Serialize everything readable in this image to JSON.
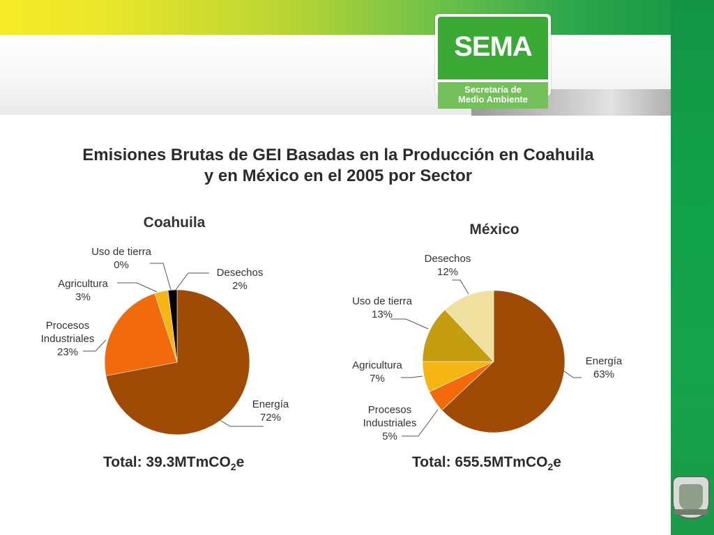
{
  "logo": {
    "name": "SEMA",
    "line1": "Secretaría de",
    "line2": "Medio Ambiente"
  },
  "title": {
    "line1": "Emisiones Brutas de GEI Basadas en la Producción en Coahuila",
    "line2": "y en México en el 2005 por Sector"
  },
  "totals": {
    "coahuila": {
      "prefix": "Total: 39.3MTmCO",
      "sub": "2",
      "suffix": "e"
    },
    "mexico": {
      "prefix": "Total: 655.5MTmCO",
      "sub": "2",
      "suffix": "e"
    }
  },
  "chart_data": [
    {
      "type": "pie",
      "title": "Coahuila",
      "colors": [
        "#a04b05",
        "#f26a0b",
        "#f5b613",
        "#f0e0a0"
      ],
      "slices": [
        {
          "label": "Energía",
          "pct_label": "72%",
          "value": 72
        },
        {
          "label": "Procesos Industriales",
          "label_lines": [
            "Procesos",
            "Industriales"
          ],
          "pct_label": "23%",
          "value": 23
        },
        {
          "label": "Agricultura",
          "pct_label": "3%",
          "value": 3
        },
        {
          "label": "Uso de tierra",
          "pct_label": "0%",
          "value": 0
        },
        {
          "label": "Desechos",
          "pct_label": "2%",
          "value": 2
        }
      ]
    },
    {
      "type": "pie",
      "title": "México",
      "colors": [
        "#a04b05",
        "#f26a0b",
        "#f5b613",
        "#c59e10",
        "#f0e0a0"
      ],
      "slices": [
        {
          "label": "Energía",
          "pct_label": "63%",
          "value": 63
        },
        {
          "label": "Procesos Industriales",
          "label_lines": [
            "Procesos",
            "Industriales"
          ],
          "pct_label": "5%",
          "value": 5
        },
        {
          "label": "Agricultura",
          "pct_label": "7%",
          "value": 7
        },
        {
          "label": "Uso de tierra",
          "pct_label": "13%",
          "value": 13
        },
        {
          "label": "Desechos",
          "pct_label": "12%",
          "value": 12
        }
      ]
    }
  ]
}
